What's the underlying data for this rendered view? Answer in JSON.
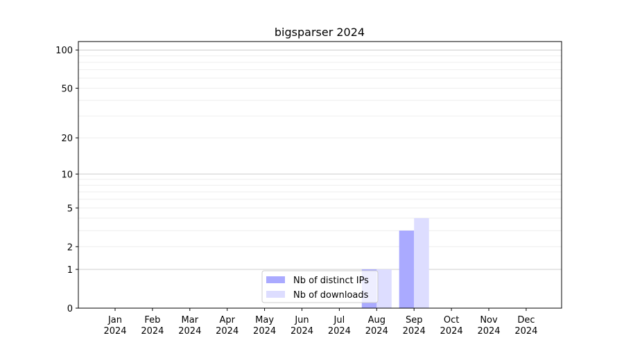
{
  "chart_data": {
    "type": "bar",
    "title": "bigsparser 2024",
    "xlabel": "",
    "ylabel": "",
    "yscale": "symlog",
    "ylim": [
      0,
      110
    ],
    "yticks": [
      0,
      1,
      2,
      5,
      10,
      20,
      50,
      100
    ],
    "ytick_labels": [
      "0",
      "1",
      "2",
      "5",
      "10",
      "20",
      "50",
      "100"
    ],
    "categories": [
      "Jan\n2024",
      "Feb\n2024",
      "Mar\n2024",
      "Apr\n2024",
      "May\n2024",
      "Jun\n2024",
      "Jul\n2024",
      "Aug\n2024",
      "Sep\n2024",
      "Oct\n2024",
      "Nov\n2024",
      "Dec\n2024"
    ],
    "series": [
      {
        "name": "Nb of distinct IPs",
        "color": "#aaaaff",
        "values": [
          0,
          0,
          0,
          0,
          0,
          0,
          0,
          1,
          3,
          0,
          0,
          0
        ]
      },
      {
        "name": "Nb of downloads",
        "color": "#ddddff",
        "values": [
          0,
          0,
          0,
          0,
          0,
          0,
          0,
          1,
          4,
          0,
          0,
          0
        ]
      }
    ],
    "grid": true,
    "legend_placement": "lower-center"
  }
}
